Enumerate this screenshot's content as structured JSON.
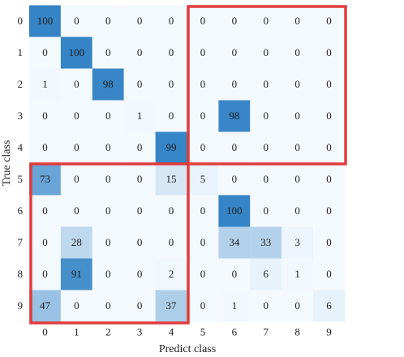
{
  "chart_data": {
    "type": "heatmap",
    "x_label": "Predict class",
    "y_label": "True class",
    "x_categories": [
      "0",
      "1",
      "2",
      "3",
      "4",
      "5",
      "6",
      "7",
      "8",
      "9"
    ],
    "y_categories": [
      "0",
      "1",
      "2",
      "3",
      "4",
      "5",
      "6",
      "7",
      "8",
      "9"
    ],
    "matrix": [
      [
        100,
        0,
        0,
        0,
        0,
        0,
        0,
        0,
        0,
        0
      ],
      [
        0,
        100,
        0,
        0,
        0,
        0,
        0,
        0,
        0,
        0
      ],
      [
        1,
        0,
        98,
        0,
        0,
        0,
        0,
        0,
        0,
        0
      ],
      [
        0,
        0,
        0,
        1,
        0,
        0,
        98,
        0,
        0,
        0
      ],
      [
        0,
        0,
        0,
        0,
        99,
        0,
        0,
        0,
        0,
        0
      ],
      [
        73,
        0,
        0,
        0,
        15,
        5,
        0,
        0,
        0,
        0
      ],
      [
        0,
        0,
        0,
        0,
        0,
        0,
        100,
        0,
        0,
        0
      ],
      [
        0,
        28,
        0,
        0,
        0,
        0,
        34,
        33,
        3,
        0
      ],
      [
        0,
        91,
        0,
        0,
        2,
        0,
        0,
        6,
        1,
        0
      ],
      [
        47,
        0,
        0,
        0,
        37,
        0,
        1,
        0,
        0,
        6
      ]
    ],
    "colormap": [
      "#f4f9fe",
      "#3484c6"
    ],
    "zlim": [
      0,
      100
    ]
  }
}
